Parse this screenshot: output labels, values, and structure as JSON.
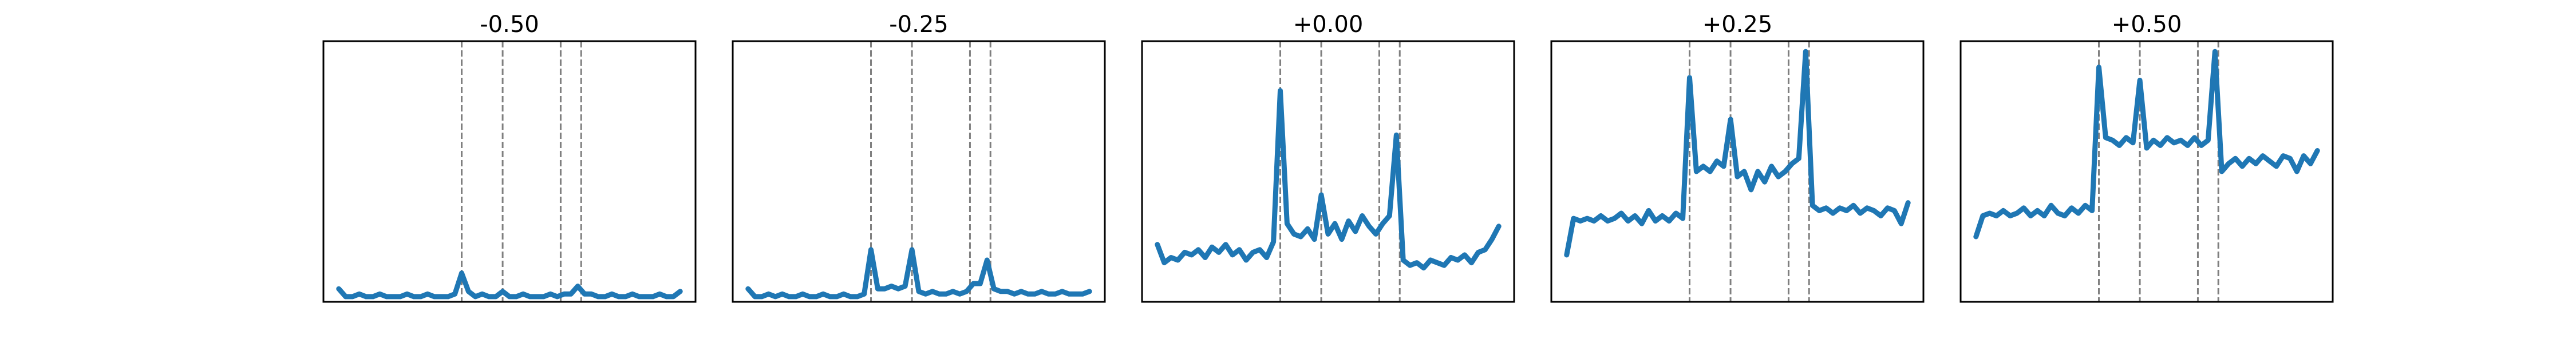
{
  "chart_data": [
    {
      "type": "line",
      "title": "-0.50",
      "color": "#1f77b4",
      "xlim": [
        -4.5,
        104.5
      ],
      "ylim": [
        0,
        1
      ],
      "vlines": [
        36,
        48,
        65,
        71
      ],
      "x": [
        0,
        2,
        4,
        6,
        8,
        10,
        12,
        14,
        16,
        18,
        20,
        22,
        24,
        26,
        28,
        30,
        32,
        34,
        36,
        38,
        40,
        42,
        44,
        46,
        48,
        50,
        52,
        54,
        56,
        58,
        60,
        62,
        64,
        66,
        68,
        70,
        72,
        74,
        76,
        78,
        80,
        82,
        84,
        86,
        88,
        90,
        92,
        94,
        96,
        98,
        100
      ],
      "values": [
        0.05,
        0.02,
        0.02,
        0.03,
        0.02,
        0.02,
        0.03,
        0.02,
        0.02,
        0.02,
        0.03,
        0.02,
        0.02,
        0.03,
        0.02,
        0.02,
        0.02,
        0.03,
        0.11,
        0.04,
        0.02,
        0.03,
        0.02,
        0.02,
        0.04,
        0.02,
        0.02,
        0.03,
        0.02,
        0.02,
        0.02,
        0.03,
        0.02,
        0.03,
        0.03,
        0.06,
        0.03,
        0.03,
        0.02,
        0.02,
        0.03,
        0.02,
        0.02,
        0.03,
        0.02,
        0.02,
        0.02,
        0.03,
        0.02,
        0.02,
        0.04
      ]
    },
    {
      "type": "line",
      "title": "-0.25",
      "color": "#1f77b4",
      "xlim": [
        -4.5,
        104.5
      ],
      "ylim": [
        0,
        1
      ],
      "vlines": [
        36,
        48,
        65,
        71
      ],
      "x": [
        0,
        2,
        4,
        6,
        8,
        10,
        12,
        14,
        16,
        18,
        20,
        22,
        24,
        26,
        28,
        30,
        32,
        34,
        36,
        38,
        40,
        42,
        44,
        46,
        48,
        50,
        52,
        54,
        56,
        58,
        60,
        62,
        64,
        66,
        68,
        70,
        72,
        74,
        76,
        78,
        80,
        82,
        84,
        86,
        88,
        90,
        92,
        94,
        96,
        98,
        100
      ],
      "values": [
        0.05,
        0.02,
        0.02,
        0.03,
        0.02,
        0.03,
        0.02,
        0.02,
        0.03,
        0.02,
        0.02,
        0.03,
        0.02,
        0.02,
        0.03,
        0.02,
        0.02,
        0.03,
        0.2,
        0.05,
        0.05,
        0.06,
        0.05,
        0.06,
        0.2,
        0.04,
        0.03,
        0.04,
        0.03,
        0.03,
        0.04,
        0.03,
        0.04,
        0.07,
        0.07,
        0.16,
        0.05,
        0.04,
        0.04,
        0.03,
        0.04,
        0.03,
        0.03,
        0.04,
        0.03,
        0.03,
        0.04,
        0.03,
        0.03,
        0.03,
        0.04
      ]
    },
    {
      "type": "line",
      "title": "+0.00",
      "color": "#1f77b4",
      "xlim": [
        -4.5,
        104.5
      ],
      "ylim": [
        0,
        1
      ],
      "vlines": [
        36,
        48,
        65,
        71
      ],
      "x": [
        0,
        2,
        4,
        6,
        8,
        10,
        12,
        14,
        16,
        18,
        20,
        22,
        24,
        26,
        28,
        30,
        32,
        34,
        36,
        38,
        40,
        42,
        44,
        46,
        48,
        50,
        52,
        54,
        56,
        58,
        60,
        62,
        64,
        66,
        68,
        70,
        72,
        74,
        76,
        78,
        80,
        82,
        84,
        86,
        88,
        90,
        92,
        94,
        96,
        98,
        100
      ],
      "values": [
        0.22,
        0.15,
        0.17,
        0.16,
        0.19,
        0.18,
        0.2,
        0.17,
        0.21,
        0.19,
        0.22,
        0.18,
        0.2,
        0.16,
        0.19,
        0.2,
        0.17,
        0.23,
        0.81,
        0.3,
        0.26,
        0.25,
        0.28,
        0.24,
        0.41,
        0.26,
        0.3,
        0.24,
        0.31,
        0.27,
        0.33,
        0.29,
        0.26,
        0.3,
        0.33,
        0.64,
        0.16,
        0.14,
        0.15,
        0.13,
        0.16,
        0.15,
        0.14,
        0.17,
        0.16,
        0.18,
        0.15,
        0.19,
        0.2,
        0.24,
        0.29
      ]
    },
    {
      "type": "line",
      "title": "+0.25",
      "color": "#1f77b4",
      "xlim": [
        -4.5,
        104.5
      ],
      "ylim": [
        0,
        1
      ],
      "vlines": [
        36,
        48,
        65,
        71
      ],
      "x": [
        0,
        2,
        4,
        6,
        8,
        10,
        12,
        14,
        16,
        18,
        20,
        22,
        24,
        26,
        28,
        30,
        32,
        34,
        36,
        38,
        40,
        42,
        44,
        46,
        48,
        50,
        52,
        54,
        56,
        58,
        60,
        62,
        64,
        66,
        68,
        70,
        72,
        74,
        76,
        78,
        80,
        82,
        84,
        86,
        88,
        90,
        92,
        94,
        96,
        98,
        100
      ],
      "values": [
        0.18,
        0.32,
        0.31,
        0.32,
        0.31,
        0.33,
        0.31,
        0.32,
        0.34,
        0.31,
        0.33,
        0.3,
        0.35,
        0.31,
        0.33,
        0.31,
        0.34,
        0.32,
        0.86,
        0.5,
        0.52,
        0.5,
        0.54,
        0.52,
        0.7,
        0.48,
        0.5,
        0.43,
        0.5,
        0.46,
        0.52,
        0.48,
        0.5,
        0.53,
        0.55,
        0.96,
        0.37,
        0.35,
        0.36,
        0.34,
        0.36,
        0.35,
        0.37,
        0.34,
        0.36,
        0.35,
        0.33,
        0.36,
        0.35,
        0.3,
        0.38
      ]
    },
    {
      "type": "line",
      "title": "+0.50",
      "color": "#1f77b4",
      "xlim": [
        -4.5,
        104.5
      ],
      "ylim": [
        0,
        1
      ],
      "vlines": [
        36,
        48,
        65,
        71
      ],
      "x": [
        0,
        2,
        4,
        6,
        8,
        10,
        12,
        14,
        16,
        18,
        20,
        22,
        24,
        26,
        28,
        30,
        32,
        34,
        36,
        38,
        40,
        42,
        44,
        46,
        48,
        50,
        52,
        54,
        56,
        58,
        60,
        62,
        64,
        66,
        68,
        70,
        72,
        74,
        76,
        78,
        80,
        82,
        84,
        86,
        88,
        90,
        92,
        94,
        96,
        98,
        100
      ],
      "values": [
        0.25,
        0.33,
        0.34,
        0.33,
        0.35,
        0.33,
        0.34,
        0.36,
        0.33,
        0.35,
        0.33,
        0.37,
        0.34,
        0.33,
        0.36,
        0.34,
        0.37,
        0.35,
        0.9,
        0.63,
        0.62,
        0.6,
        0.63,
        0.61,
        0.85,
        0.59,
        0.62,
        0.6,
        0.63,
        0.61,
        0.62,
        0.6,
        0.63,
        0.6,
        0.62,
        0.96,
        0.5,
        0.53,
        0.55,
        0.52,
        0.55,
        0.53,
        0.56,
        0.54,
        0.52,
        0.56,
        0.55,
        0.5,
        0.56,
        0.53,
        0.58
      ]
    }
  ]
}
